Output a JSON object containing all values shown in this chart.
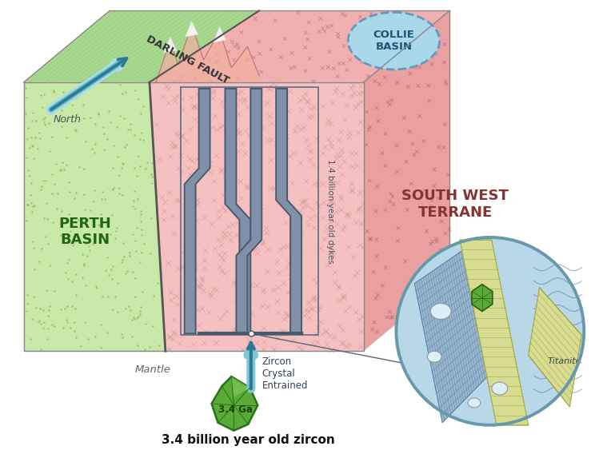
{
  "bg_color": "#ffffff",
  "perth_green_light": "#c8e8a8",
  "perth_green_dark": "#98c878",
  "sw_pink_light": "#f5c0c0",
  "sw_pink_mid": "#eea0a0",
  "sw_pink_dark": "#e08080",
  "right_face_pink": "#e8a0a0",
  "top_face_green": "#a8d890",
  "top_face_pink": "#f0b0b0",
  "fault_color": "#555555",
  "dyke_fill": "#8090a8",
  "dyke_edge": "#4a5a6e",
  "collie_fill": "#a8d8ea",
  "collie_edge": "#6699bb",
  "zoom_bg": "#b8d8e8",
  "zoom_edge": "#6699aa",
  "arrow_dark": "#2a7a90",
  "arrow_light": "#80c8d8",
  "gem_fill": "#5aaa38",
  "gem_edge": "#2a7018",
  "title_color": "#111111",
  "label_green": "#226610",
  "label_red": "#883333",
  "label_dark": "#333333",
  "label_gray": "#666666",
  "vein_fill": "#d8dc90",
  "vein_edge": "#a0a840",
  "xhatch_fill": "#9ab8cc",
  "north_label": "North",
  "darling_label": "DARLING FAULT",
  "perth_label": "PERTH\nBASIN",
  "sw_label": "SOUTH WEST\nTERRANE",
  "collie_label": "COLLIE\nBASIN",
  "mantle_label": "Mantle",
  "dyke_label": "1.4 billion year old dykes",
  "zircon_entrained": "Zircon\nCrystal\nEntrained",
  "titanite_label": "Titanite",
  "crystal_label": "3.4 Ga",
  "title": "3.4 billion year old zircon"
}
